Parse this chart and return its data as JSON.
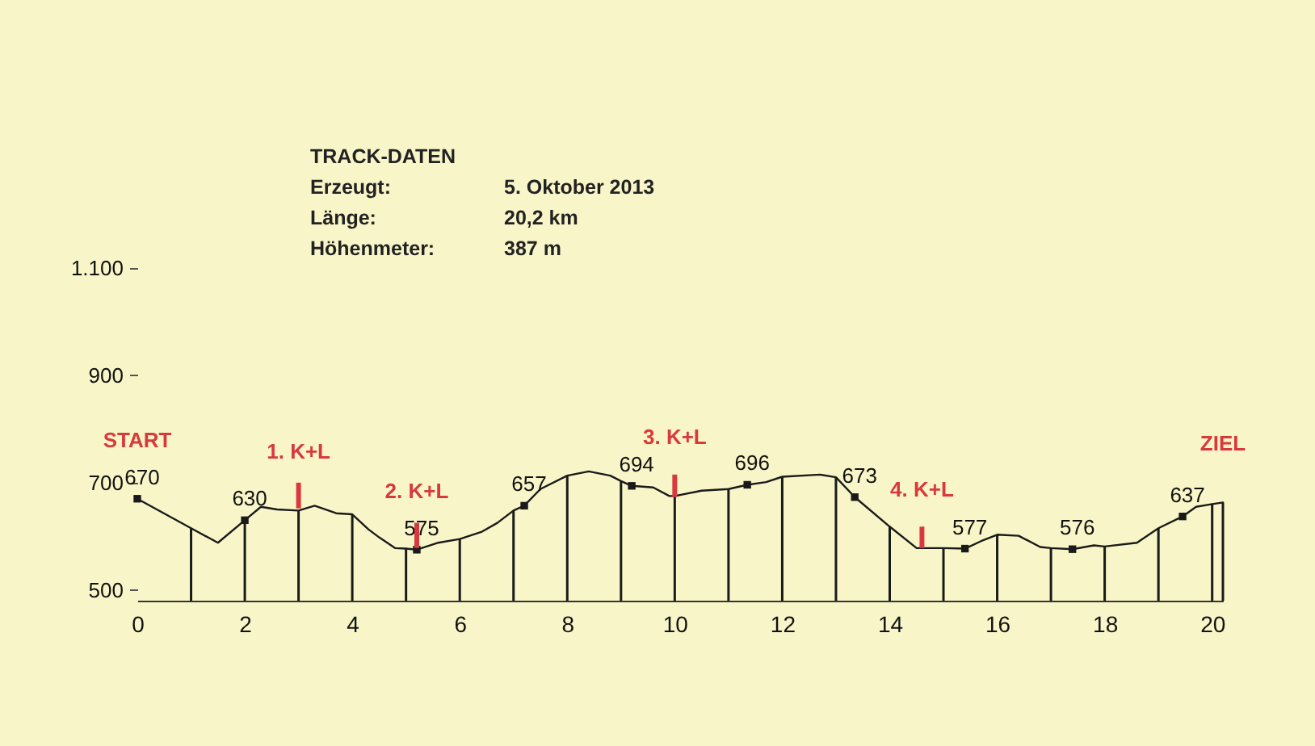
{
  "chart_data": {
    "type": "line",
    "annotations": [
      "TRACK-DATEN",
      "Erzeugt:",
      "5. Oktober 2013",
      "Länge:",
      "20,2 km",
      "Höhenmeter:",
      "387 m",
      {
        "text": "START",
        "x": 0,
        "y": 670
      },
      {
        "text": "1. K+L",
        "x": 3,
        "y": 648
      },
      {
        "text": "2. K+L",
        "x": 5.2,
        "y": 575
      },
      {
        "text": "3. K+L",
        "x": 10,
        "y": 675
      },
      {
        "text": "4. K+L",
        "x": 14.6,
        "y": 578
      },
      {
        "text": "ZIEL",
        "x": 20.2,
        "y": 663
      }
    ],
    "xlim": [
      0,
      20.2
    ],
    "xticks": [
      0,
      2,
      4,
      6,
      8,
      10,
      12,
      14,
      16,
      18,
      20
    ],
    "ylim": [
      480,
      1100
    ],
    "yticks": [
      500,
      700,
      900,
      {
        "value": 1100,
        "label": "1.100"
      }
    ],
    "series": [
      {
        "color": "#1a1a1a",
        "x": [
          0,
          1,
          1.5,
          2,
          2.3,
          2.6,
          3,
          3.3,
          3.7,
          4,
          4.3,
          4.5,
          4.8,
          5,
          5.2,
          5.6,
          6,
          6.4,
          6.7,
          7,
          7.2,
          7.5,
          8,
          8.4,
          8.8,
          9,
          9.2,
          9.6,
          9.9,
          10,
          10.5,
          11,
          11.35,
          11.7,
          12,
          12.7,
          13,
          13.35,
          14,
          14.5,
          15,
          15.4,
          15.7,
          16,
          16.4,
          16.8,
          17,
          17.4,
          17.8,
          18,
          18.6,
          19,
          19.45,
          19.7,
          20,
          20.2
        ],
        "values": [
          670,
          615,
          588,
          630,
          655,
          650,
          648,
          657,
          643,
          641,
          613,
          598,
          578,
          577,
          575,
          588,
          595,
          608,
          625,
          648,
          657,
          688,
          713,
          721,
          713,
          703,
          694,
          691,
          675,
          675,
          685,
          688,
          696,
          701,
          711,
          715,
          710,
          673,
          618,
          578,
          578,
          577,
          591,
          603,
          601,
          580,
          578,
          576,
          583,
          581,
          588,
          615,
          637,
          655,
          660,
          663
        ]
      },
      {
        "type": "scatter",
        "color": "#1a1a1a",
        "marker": "square",
        "x": [
          0,
          2,
          5.2,
          7.2,
          9.2,
          11.35,
          13.35,
          15.4,
          17.4,
          19.45
        ],
        "values": [
          670,
          630,
          575,
          657,
          694,
          696,
          673,
          577,
          576,
          637
        ],
        "data_labels": true
      },
      {
        "type": "bar",
        "color": "#1a1a1a",
        "x": [
          1,
          2,
          3,
          4,
          5,
          6,
          7,
          8,
          9,
          10,
          11,
          12,
          13,
          14,
          15,
          16,
          17,
          18,
          19,
          20,
          20.2
        ],
        "values": [
          615,
          630,
          648,
          641,
          577,
          595,
          648,
          713,
          703,
          675,
          688,
          711,
          710,
          618,
          578,
          603,
          578,
          581,
          615,
          660,
          663
        ]
      },
      {
        "type": "bar",
        "color": "#d9393e",
        "x": [
          3,
          5.2,
          10,
          14.6
        ],
        "base": [
          652,
          578,
          673,
          578
        ],
        "values": [
          48,
          47,
          42,
          40
        ]
      }
    ]
  }
}
